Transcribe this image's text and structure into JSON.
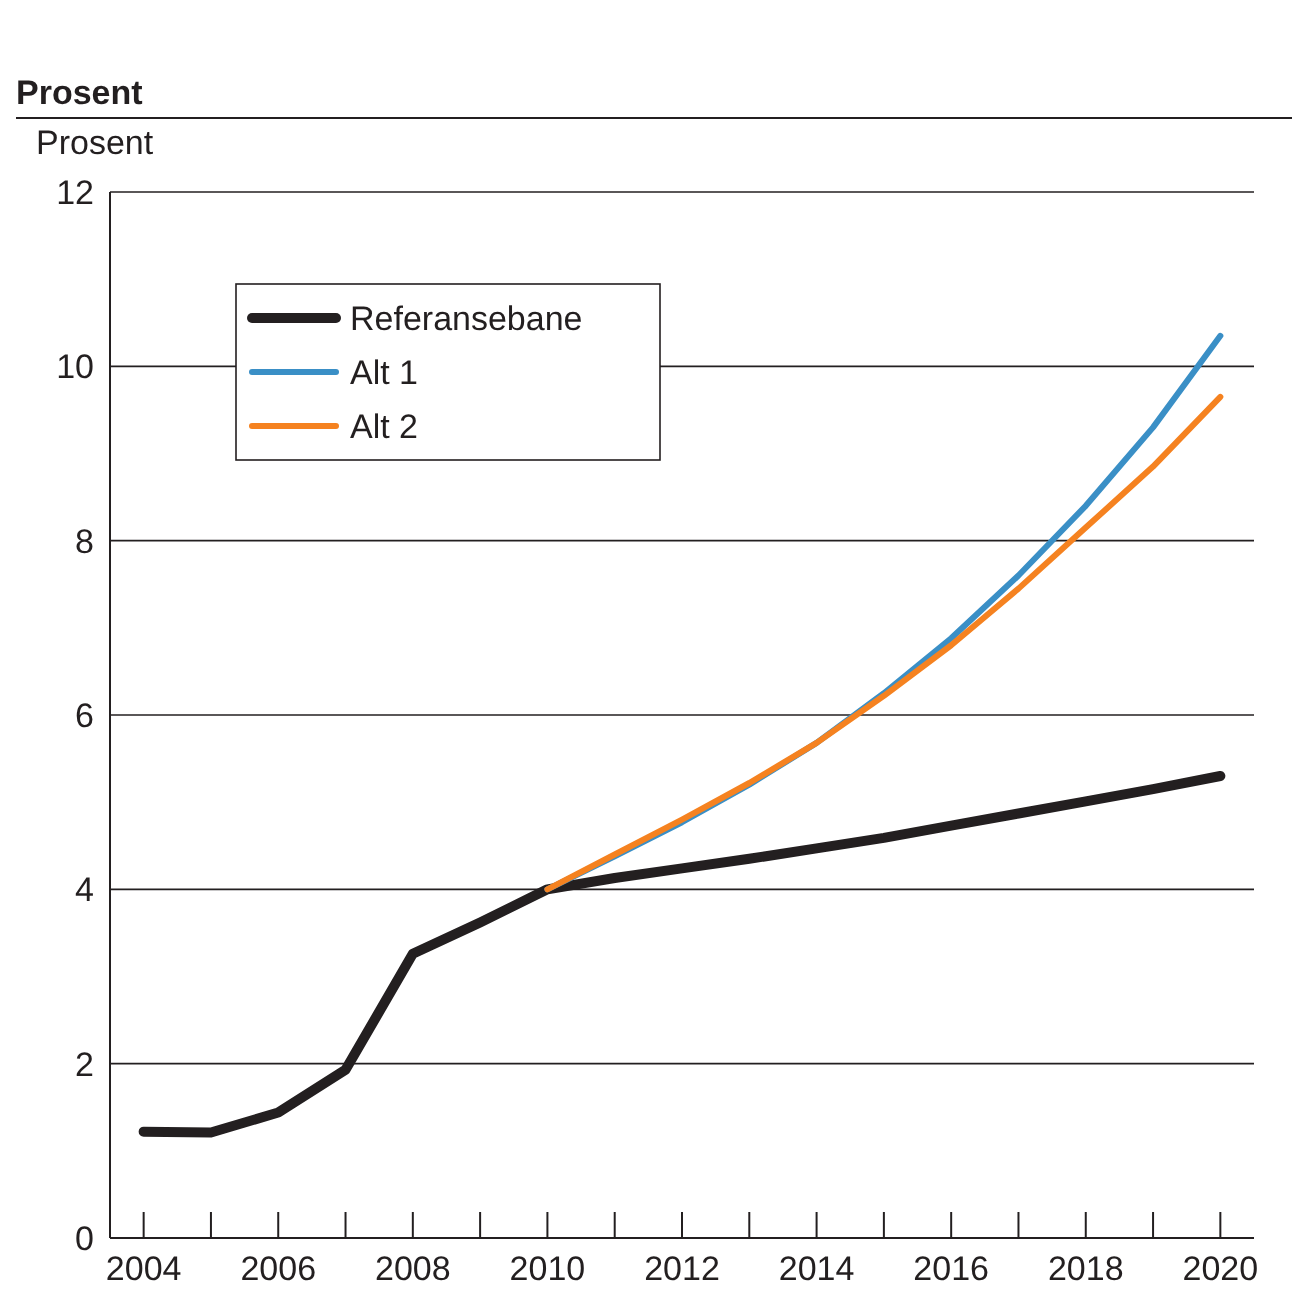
{
  "chart_data": {
    "type": "line",
    "title": "Prosent",
    "ylabel": "Prosent",
    "x": [
      2004,
      2005,
      2006,
      2007,
      2008,
      2009,
      2010,
      2011,
      2012,
      2013,
      2014,
      2015,
      2016,
      2017,
      2018,
      2019,
      2020
    ],
    "series": [
      {
        "name": "Referansebane",
        "color": "#231f20",
        "values": [
          1.22,
          1.21,
          1.44,
          1.93,
          3.26,
          3.62,
          4.0,
          4.13,
          4.24,
          4.35,
          4.47,
          4.59,
          4.73,
          4.87,
          5.01,
          5.15,
          5.3
        ]
      },
      {
        "name": "Alt 1",
        "color": "#3a8fc6",
        "values": [
          null,
          null,
          null,
          null,
          null,
          null,
          4.0,
          4.38,
          4.77,
          5.2,
          5.68,
          6.25,
          6.88,
          7.6,
          8.4,
          9.3,
          10.35
        ]
      },
      {
        "name": "Alt 2",
        "color": "#f58220",
        "values": [
          null,
          null,
          null,
          null,
          null,
          null,
          4.0,
          4.4,
          4.8,
          5.22,
          5.68,
          6.22,
          6.8,
          7.45,
          8.15,
          8.85,
          9.65
        ]
      }
    ],
    "xlim": [
      2003.5,
      2020.5
    ],
    "xticks": [
      2004,
      {
        "value": 2005,
        "label": null
      },
      2006,
      {
        "value": 2007,
        "label": null
      },
      2008,
      {
        "value": 2009,
        "label": null
      },
      2010,
      {
        "value": 2011,
        "label": null
      },
      2012,
      {
        "value": 2013,
        "label": null
      },
      2014,
      {
        "value": 2015,
        "label": null
      },
      2016,
      {
        "value": 2017,
        "label": null
      },
      2018,
      {
        "value": 2019,
        "label": null
      },
      2020
    ],
    "ylim": [
      0,
      12
    ],
    "yticks": [
      0,
      2,
      4,
      6,
      8,
      10,
      12
    ],
    "grid": "y",
    "legend": "top left",
    "line_style": "solid",
    "marker": "none"
  }
}
